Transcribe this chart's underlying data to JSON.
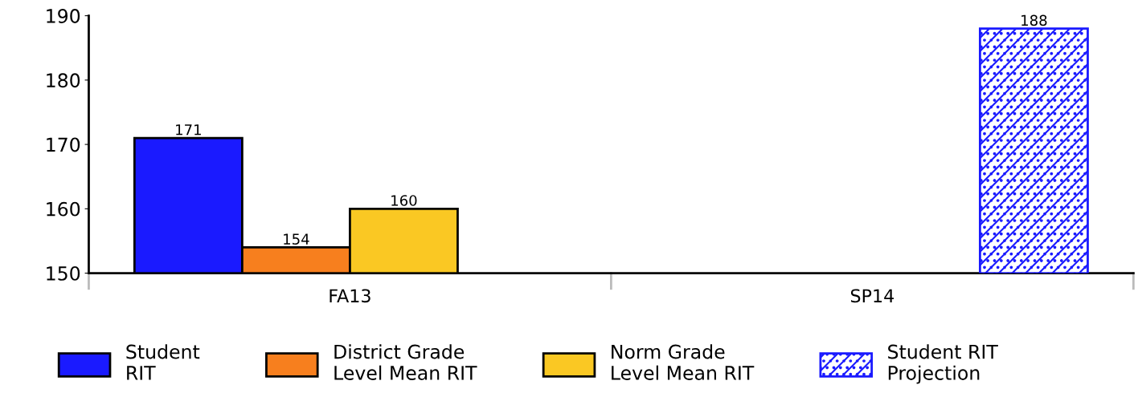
{
  "chart_data": {
    "type": "bar",
    "categories": [
      "FA13",
      "SP14"
    ],
    "series": [
      {
        "name": "Student\nRIT",
        "color": "#1a1aff",
        "values": [
          171,
          null
        ]
      },
      {
        "name": "District Grade\nLevel Mean RIT",
        "color": "#f77f1e",
        "values": [
          154,
          null
        ]
      },
      {
        "name": "Norm Grade\nLevel Mean RIT",
        "color": "#fac823",
        "values": [
          160,
          null
        ]
      },
      {
        "name": "Student RIT\nProjection",
        "color": "#1a1aff",
        "values": [
          null,
          188
        ]
      }
    ],
    "ylim": [
      150,
      190
    ],
    "yticks": [
      150,
      160,
      170,
      180,
      190
    ],
    "data_labels": true,
    "grid": false,
    "legend": "bottom"
  }
}
